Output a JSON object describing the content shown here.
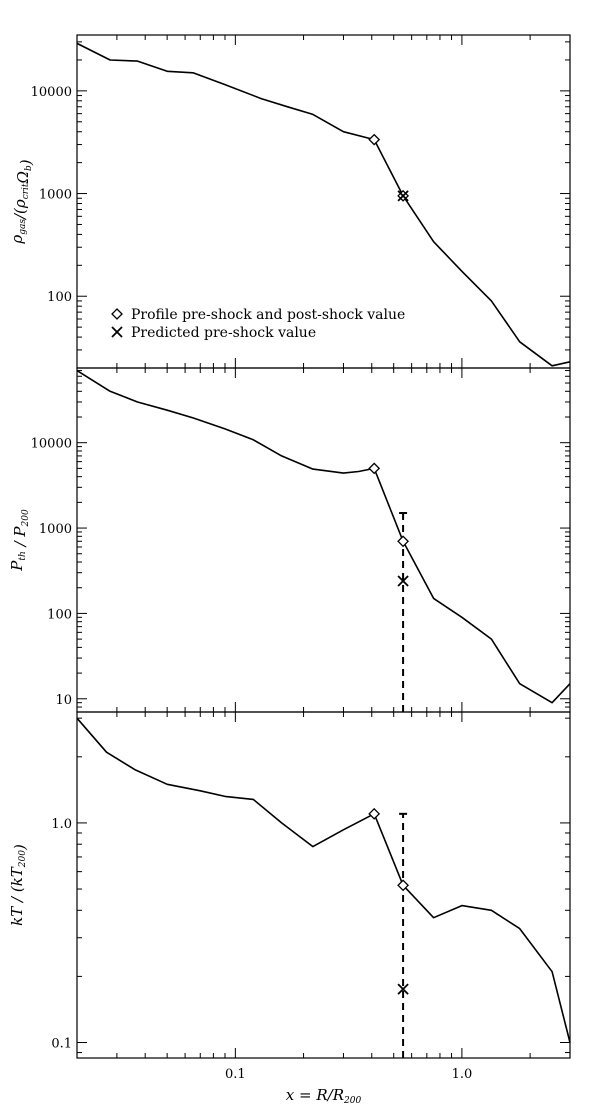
{
  "chart_data": [
    {
      "type": "line",
      "ylabel": "ρgas/(ρcritΩb)",
      "ylabel_parts": {
        "main": "ρ",
        "main_sub": "gas",
        "mid": "/(ρ",
        "mid_sub": "crit",
        "tail": "Ω",
        "tail_sub": "b",
        "end": ")"
      },
      "xlog": true,
      "ylog": true,
      "xlim": [
        0.02,
        3.0
      ],
      "ylim": [
        20,
        35000
      ],
      "yticks": [
        {
          "value": 100,
          "label": "100"
        },
        {
          "value": 1000,
          "label": "1000"
        },
        {
          "value": 10000,
          "label": "10000"
        }
      ],
      "series": [
        {
          "x": [
            0.02,
            0.028,
            0.037,
            0.05,
            0.065,
            0.09,
            0.13,
            0.17,
            0.22,
            0.3,
            0.41,
            0.55,
            0.75,
            1.0,
            1.35,
            1.8,
            2.5,
            3.0
          ],
          "y": [
            29000,
            20000,
            19500,
            15500,
            15000,
            11500,
            8400,
            7000,
            5900,
            4000,
            3350,
            950,
            340,
            175,
            90,
            36,
            21,
            23
          ]
        }
      ],
      "markers": [
        {
          "kind": "diamond",
          "x": 0.41,
          "y": 3350
        },
        {
          "kind": "diamond",
          "x": 0.55,
          "y": 950
        },
        {
          "kind": "cross",
          "x": 0.55,
          "y": 950
        }
      ],
      "legend": [
        {
          "symbol": "diamond",
          "label": "Profile pre-shock and post-shock value"
        },
        {
          "symbol": "cross",
          "label": "Predicted pre-shock value"
        }
      ],
      "legend_position": "lower-left"
    },
    {
      "type": "line",
      "ylabel": "Pth / P200",
      "ylabel_parts": {
        "main": "P",
        "main_sub": "th",
        "mid": " / P",
        "mid_sub": "200"
      },
      "xlog": true,
      "ylog": true,
      "xlim": [
        0.02,
        3.0
      ],
      "ylim": [
        7,
        75000
      ],
      "yticks": [
        {
          "value": 10,
          "label": "10"
        },
        {
          "value": 100,
          "label": "100"
        },
        {
          "value": 1000,
          "label": "1000"
        },
        {
          "value": 10000,
          "label": "10000"
        }
      ],
      "series": [
        {
          "x": [
            0.02,
            0.028,
            0.037,
            0.05,
            0.065,
            0.09,
            0.12,
            0.16,
            0.22,
            0.3,
            0.35,
            0.41,
            0.55,
            0.75,
            1.0,
            1.35,
            1.8,
            2.5,
            3.0
          ],
          "y": [
            70000,
            40000,
            30000,
            24000,
            19500,
            14500,
            10800,
            7000,
            4900,
            4400,
            4600,
            5000,
            700,
            150,
            90,
            50,
            15,
            9,
            15
          ]
        }
      ],
      "markers": [
        {
          "kind": "diamond",
          "x": 0.41,
          "y": 5000
        },
        {
          "kind": "diamond",
          "x": 0.55,
          "y": 700
        },
        {
          "kind": "cross",
          "x": 0.55,
          "y": 240
        }
      ],
      "errorbar": {
        "x": 0.55,
        "ylow": 7,
        "yhigh": 1500
      }
    },
    {
      "type": "line",
      "ylabel": "kT / (kT200)",
      "ylabel_parts": {
        "main": "kT / (kT",
        "main_sub": "200",
        "end": ")"
      },
      "xlog": true,
      "ylog": true,
      "xlim": [
        0.02,
        3.0
      ],
      "ylim": [
        0.085,
        3.2
      ],
      "yticks": [
        {
          "value": 0.1,
          "label": "0.1"
        },
        {
          "value": 1.0,
          "label": "1.0"
        }
      ],
      "series": [
        {
          "x": [
            0.02,
            0.027,
            0.036,
            0.05,
            0.07,
            0.09,
            0.12,
            0.16,
            0.22,
            0.3,
            0.41,
            0.55,
            0.75,
            1.0,
            1.35,
            1.8,
            2.5,
            3.0
          ],
          "y": [
            3.0,
            2.1,
            1.75,
            1.5,
            1.4,
            1.32,
            1.28,
            1.0,
            0.78,
            0.93,
            1.1,
            0.52,
            0.37,
            0.42,
            0.4,
            0.33,
            0.21,
            0.1
          ]
        }
      ],
      "markers": [
        {
          "kind": "diamond",
          "x": 0.41,
          "y": 1.1
        },
        {
          "kind": "diamond",
          "x": 0.55,
          "y": 0.52
        },
        {
          "kind": "cross",
          "x": 0.55,
          "y": 0.175
        }
      ],
      "errorbar": {
        "x": 0.55,
        "ylow": 0.085,
        "yhigh": 1.1
      },
      "xticks": [
        {
          "value": 0.1,
          "label": "0.1"
        },
        {
          "value": 1.0,
          "label": "1.0"
        }
      ],
      "xlabel": "x = R/R200",
      "xlabel_parts": {
        "main": "x = R/R",
        "main_sub": "200"
      }
    }
  ]
}
